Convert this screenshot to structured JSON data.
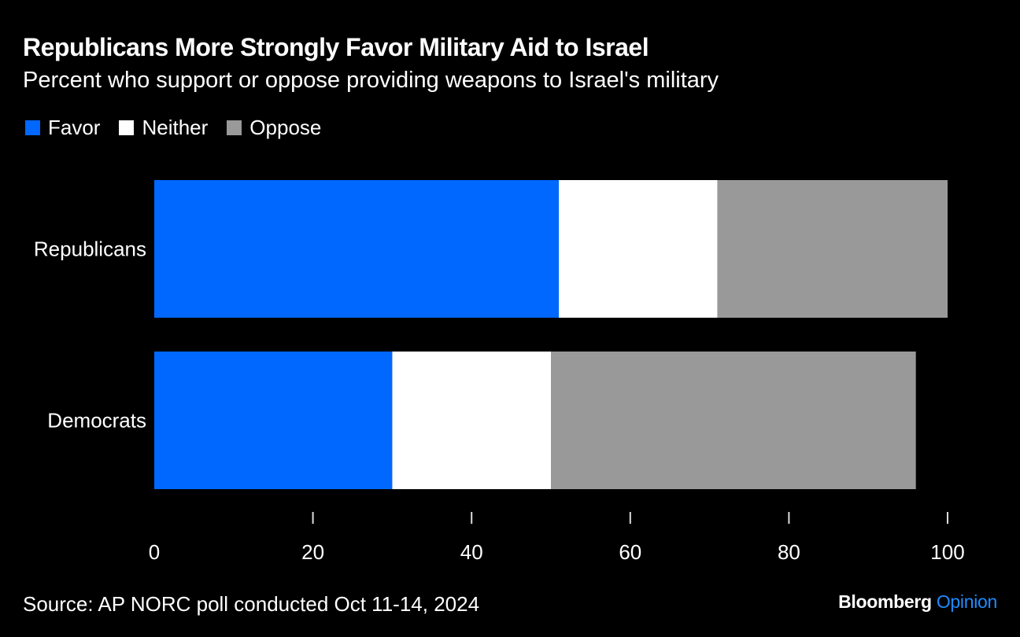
{
  "title": "Republicans More Strongly Favor Military Aid to Israel",
  "subtitle": "Percent who support or oppose providing weapons to Israel's military",
  "source": "Source: AP NORC poll conducted Oct 11-14, 2024",
  "brand": {
    "name": "Bloomberg",
    "section": "Opinion",
    "section_color": "#1f8bff"
  },
  "legend": [
    {
      "label": "Favor",
      "color": "#0068ff"
    },
    {
      "label": "Neither",
      "color": "#ffffff"
    },
    {
      "label": "Oppose",
      "color": "#999999"
    }
  ],
  "chart_data": {
    "type": "bar",
    "orientation": "horizontal",
    "stacked": true,
    "title": "Republicans More Strongly Favor Military Aid to Israel",
    "subtitle": "Percent who support or oppose providing weapons to Israel's military",
    "categories": [
      "Republicans",
      "Democrats"
    ],
    "series": [
      {
        "name": "Favor",
        "color": "#0068ff",
        "values": [
          51,
          30
        ]
      },
      {
        "name": "Neither",
        "color": "#ffffff",
        "values": [
          20,
          20
        ]
      },
      {
        "name": "Oppose",
        "color": "#999999",
        "values": [
          29,
          46
        ]
      }
    ],
    "xlim": [
      0,
      100
    ],
    "xticks": [
      0,
      20,
      40,
      60,
      80,
      100
    ],
    "xlabel": "",
    "ylabel": "",
    "grid": false,
    "legend_position": "top-left"
  }
}
